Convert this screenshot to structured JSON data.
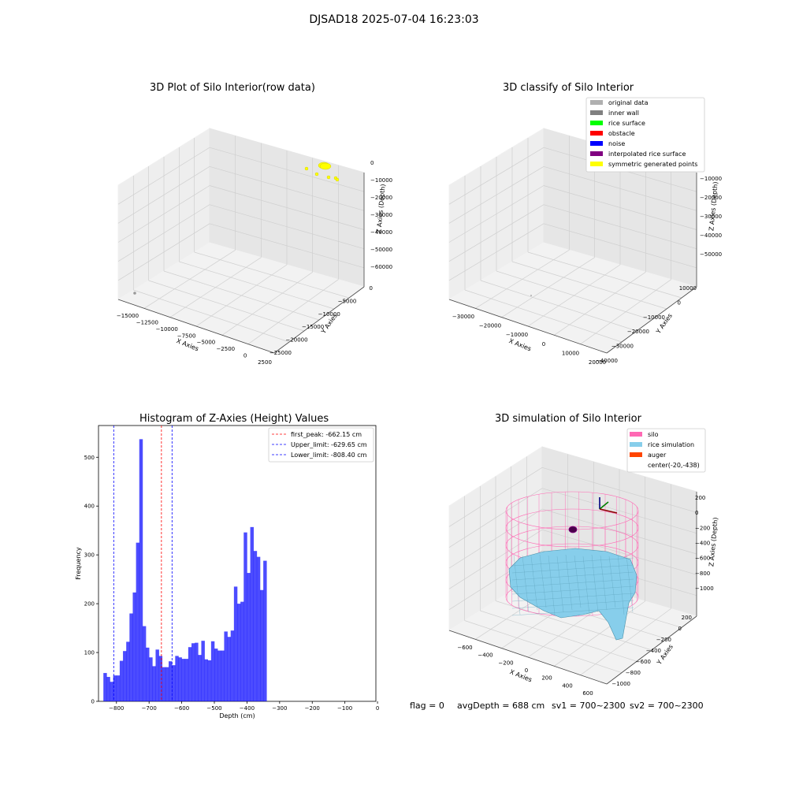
{
  "suptitle": "DJSAD18 2025-07-04 16:23:03",
  "chart_data": [
    {
      "type": "scatter",
      "projection": "3d",
      "title": "3D Plot of Silo Interior(row data)",
      "xlabel": "X Axies",
      "ylabel": "Y Axies",
      "zlabel": "Z Axies (Depth)",
      "xticks": [
        "−15000",
        "−12500",
        "−10000",
        "−7500",
        "−5000",
        "−2500",
        "0",
        "2500"
      ],
      "yticks": [
        "0",
        "−5000",
        "−10000",
        "−15000",
        "−20000",
        "−25000"
      ],
      "zticks": [
        "0",
        "−10000",
        "−20000",
        "−30000",
        "−40000",
        "−50000",
        "−60000"
      ],
      "series": [
        {
          "name": "points",
          "color": "#ffff00",
          "points": [
            [
              -1200,
              -2000,
              -300
            ],
            [
              -1500,
              -2200,
              -400
            ],
            [
              -3500,
              -3500,
              -3000
            ],
            [
              -2500,
              -4000,
              -6000
            ],
            [
              -500,
              -6000,
              -7000
            ],
            [
              200,
              -5000,
              -8000
            ],
            [
              400,
              -5200,
              -8500
            ]
          ]
        },
        {
          "name": "outlier",
          "color": "#999999",
          "points": [
            [
              -15000,
              -25000,
              -60000
            ]
          ]
        }
      ]
    },
    {
      "type": "scatter",
      "projection": "3d",
      "title": "3D classify of Silo Interior",
      "xlabel": "X Axies",
      "ylabel": "Y Axies",
      "zlabel": "Z Axies (Depth)",
      "xticks": [
        "−30000",
        "−20000",
        "−10000",
        "0",
        "10000",
        "20000"
      ],
      "yticks": [
        "10000",
        "0",
        "−10000",
        "−20000",
        "−30000",
        "−40000"
      ],
      "zticks": [
        "0",
        "−10000",
        "−20000",
        "−30000",
        "−40000",
        "−50000"
      ],
      "legend": [
        {
          "label": "original data",
          "color": "#b0b0b0"
        },
        {
          "label": "inner wall",
          "color": "#808080"
        },
        {
          "label": "rice surface",
          "color": "#00ff00"
        },
        {
          "label": "obstacle",
          "color": "#ff0000"
        },
        {
          "label": "noise",
          "color": "#0000ff"
        },
        {
          "label": "interpolated rice surface",
          "color": "#800080"
        },
        {
          "label": "symmetric generated points",
          "color": "#ffff00"
        }
      ]
    },
    {
      "type": "bar",
      "title": "Histogram of Z-Axies (Height) Values",
      "xlabel": "Depth (cm)",
      "ylabel": "Frequency",
      "xlim": [
        -855,
        -5
      ],
      "ylim": [
        0,
        565
      ],
      "xticks": [
        -800,
        -700,
        -600,
        -500,
        -400,
        -300,
        -200,
        -100,
        0
      ],
      "yticks": [
        0,
        100,
        200,
        300,
        400,
        500
      ],
      "bar_color": "#0000ff",
      "bins": {
        "start": -840,
        "width": 10
      },
      "values": [
        58,
        50,
        40,
        53,
        53,
        83,
        103,
        122,
        180,
        223,
        325,
        537,
        154,
        110,
        90,
        72,
        106,
        93,
        70,
        70,
        82,
        74,
        93,
        90,
        87,
        87,
        111,
        119,
        120,
        95,
        124,
        86,
        84,
        123,
        108,
        104,
        104,
        143,
        132,
        145,
        235,
        200,
        204,
        346,
        263,
        357,
        308,
        296,
        228,
        288
      ],
      "lines": [
        {
          "label": "first_peak: -662.15 cm",
          "value": -662.15,
          "color": "#ff0000"
        },
        {
          "label": "Upper_limit: -629.65 cm",
          "value": -629.65,
          "color": "#0000ff"
        },
        {
          "label": "Lower_limit: -808.40 cm",
          "value": -808.4,
          "color": "#0000ff"
        }
      ]
    },
    {
      "type": "surface",
      "projection": "3d",
      "title": "3D simulation of Silo Interior",
      "xlabel": "X Axies",
      "ylabel": "Y Axies",
      "zlabel": "Z Axies (Depth)",
      "xticks": [
        "−600",
        "−400",
        "−200",
        "0",
        "200",
        "400",
        "600"
      ],
      "yticks": [
        "200",
        "0",
        "−200",
        "−400",
        "−600",
        "−800",
        "−1000"
      ],
      "zticks": [
        "200",
        "0",
        "−200",
        "−400",
        "−600",
        "−800",
        "−1000"
      ],
      "legend": [
        {
          "label": "silo",
          "color": "#ff69b4"
        },
        {
          "label": "rice simulation",
          "color": "#87ceeb"
        },
        {
          "label": "auger",
          "color": "#ff4500"
        },
        {
          "label": "center(-20,-438)",
          "color": "#ffffff"
        }
      ],
      "center": [
        -20,
        -438
      ]
    }
  ],
  "status": {
    "flag": "flag = 0",
    "avg_depth": "avgDepth = 688 cm",
    "sv1": "sv1 = 700~2300",
    "sv2": "sv2 = 700~2300"
  }
}
